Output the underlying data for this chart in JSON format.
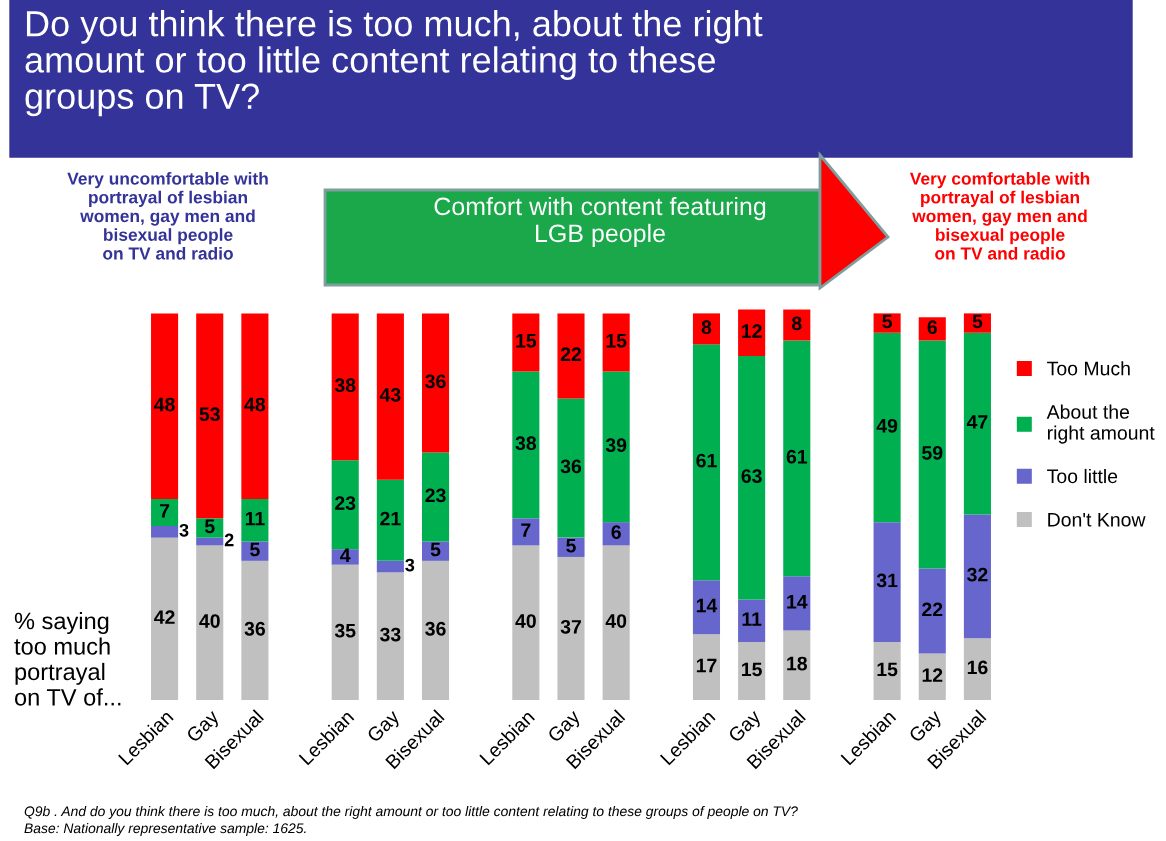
{
  "chart_data": {
    "type": "bar",
    "stacked": true,
    "data_labels": true,
    "legend": "right",
    "title": "Do you think there is too much, about the right amount or too little content relating to these groups on TV?",
    "categories": [
      "Lesbian",
      "Gay",
      "Bisexual",
      null,
      "Lesbian",
      "Gay",
      "Bisexual",
      null,
      "Lesbian",
      "Gay",
      "Bisexual",
      null,
      "Lesbian",
      "Gay",
      "Bisexual",
      null,
      "Lesbian",
      "Gay",
      "Bisexual"
    ],
    "series": [
      {
        "name": "Don't Know",
        "color": "#c0c0c0",
        "values": [
          42,
          40,
          36,
          null,
          35,
          33,
          36,
          null,
          40,
          37,
          40,
          null,
          17,
          15,
          18,
          null,
          15,
          12,
          16
        ]
      },
      {
        "name": "Too little",
        "color": "#6666cc",
        "values": [
          3,
          2,
          5,
          null,
          4,
          3,
          5,
          null,
          7,
          5,
          6,
          null,
          14,
          11,
          14,
          null,
          31,
          22,
          32
        ]
      },
      {
        "name": "About the right amount",
        "color": "#00b050",
        "values": [
          7,
          5,
          11,
          null,
          23,
          21,
          23,
          null,
          38,
          36,
          39,
          null,
          61,
          63,
          61,
          null,
          49,
          59,
          47
        ]
      },
      {
        "name": "Too Much",
        "color": "#ff0000",
        "values": [
          48,
          53,
          48,
          null,
          38,
          43,
          36,
          null,
          15,
          22,
          15,
          null,
          8,
          12,
          8,
          null,
          5,
          6,
          5
        ]
      }
    ],
    "annotations": [
      "Very uncomfortable with portrayal of lesbian women, gay men and bisexual people on TV and radio",
      "Very comfortable with portrayal of lesbian women, gay men and bisexual people on TV and radio",
      "Comfort with content featuring LGB people",
      "% saying too much portrayal on TV of...",
      "Q9b . And do you think there is too much, about the right amount or too little content relating to these groups of people on TV?",
      "Base: Nationally representative sample: 1625."
    ]
  }
}
